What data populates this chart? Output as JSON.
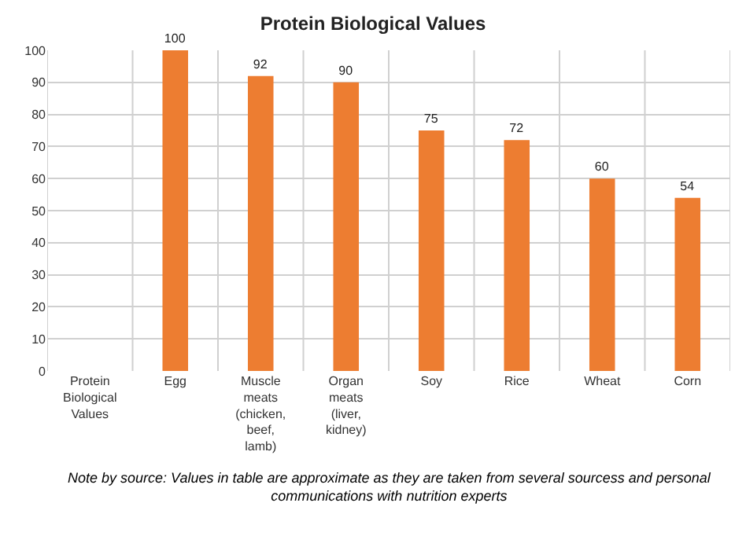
{
  "chart_data": {
    "type": "bar",
    "title": "Protein Biological Values",
    "categories": [
      "Protein Biological Values",
      "Egg",
      "Muscle meats (chicken, beef, lamb)",
      "Organ meats (liver, kidney)",
      "Soy",
      "Rice",
      "Wheat",
      "Corn"
    ],
    "values": [
      null,
      100,
      92,
      90,
      75,
      72,
      60,
      54
    ],
    "color": "#ed7d31",
    "ylim": [
      0,
      100
    ],
    "yticks": [
      0,
      10,
      20,
      30,
      40,
      50,
      60,
      70,
      80,
      90,
      100
    ],
    "grid": true,
    "data_labels": true,
    "annotations": [
      "Note by source: Values in table are approximate as they are taken from several sourcess and personal communications with nutrition experts"
    ]
  }
}
